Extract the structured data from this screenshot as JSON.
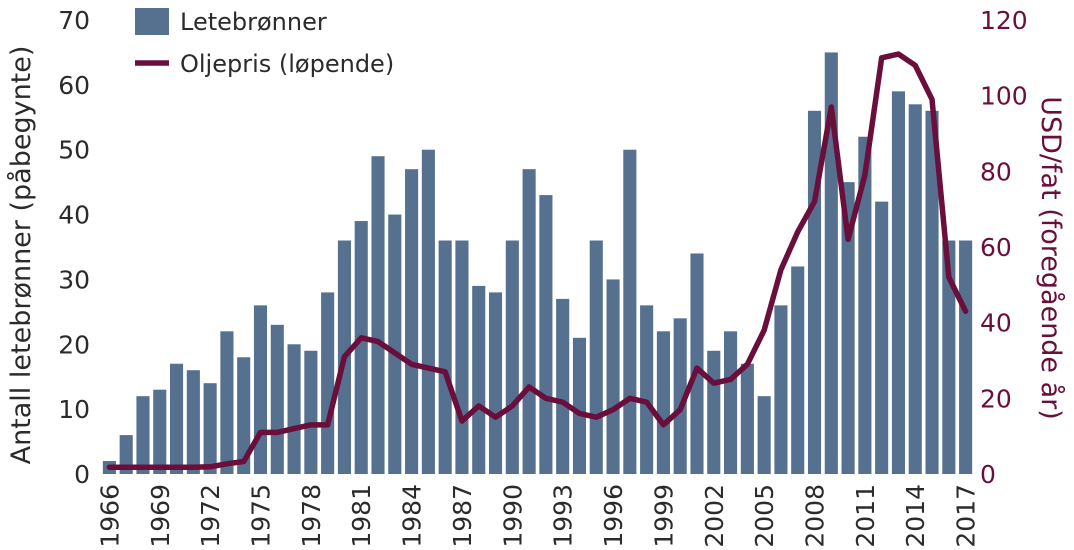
{
  "chart_data": {
    "type": "bar",
    "years": [
      1966,
      1967,
      1968,
      1969,
      1970,
      1971,
      1972,
      1973,
      1974,
      1975,
      1976,
      1977,
      1978,
      1979,
      1980,
      1981,
      1982,
      1983,
      1984,
      1985,
      1986,
      1987,
      1988,
      1989,
      1990,
      1991,
      1992,
      1993,
      1994,
      1995,
      1996,
      1997,
      1998,
      1999,
      2000,
      2001,
      2002,
      2003,
      2004,
      2005,
      2006,
      2007,
      2008,
      2009,
      2010,
      2011,
      2012,
      2013,
      2014,
      2015,
      2016,
      2017
    ],
    "series": [
      {
        "name": "Letebrønner",
        "type": "bar",
        "axis": "left",
        "values": [
          2,
          6,
          12,
          13,
          17,
          16,
          14,
          22,
          18,
          26,
          23,
          20,
          19,
          28,
          36,
          39,
          49,
          40,
          47,
          50,
          36,
          36,
          29,
          28,
          36,
          47,
          43,
          27,
          21,
          36,
          30,
          50,
          26,
          22,
          24,
          34,
          19,
          22,
          17,
          12,
          26,
          32,
          56,
          65,
          45,
          52,
          42,
          59,
          57,
          56,
          36,
          36
        ]
      },
      {
        "name": "Oljepris (løpende)",
        "type": "line",
        "axis": "right",
        "values": [
          1.8,
          1.8,
          1.8,
          1.8,
          1.8,
          1.8,
          1.9,
          2.7,
          3.3,
          11,
          11,
          12,
          13,
          13,
          31,
          36,
          35,
          32,
          29,
          28,
          27,
          14,
          18,
          15,
          18,
          23,
          20,
          19,
          16,
          15,
          17,
          20,
          19,
          13,
          17,
          28,
          24,
          25,
          29,
          38,
          54,
          64,
          72,
          97,
          62,
          79,
          110,
          111,
          108,
          99,
          52,
          43
        ]
      }
    ],
    "x_tick_labels": [
      "1966",
      "1969",
      "1972",
      "1975",
      "1978",
      "1981",
      "1984",
      "1987",
      "1990",
      "1993",
      "1996",
      "1999",
      "2002",
      "2005",
      "2008",
      "2011",
      "2014",
      "2017"
    ],
    "y_left": {
      "label": "Antall letebrønner (påbegynte)",
      "ticks": [
        "0",
        "10",
        "20",
        "30",
        "40",
        "50",
        "60",
        "70"
      ],
      "lim": [
        0,
        70
      ]
    },
    "y_right": {
      "label": "USD/fat (foregående år)",
      "ticks": [
        "0",
        "20",
        "40",
        "60",
        "80",
        "100",
        "120"
      ],
      "lim": [
        0,
        120
      ]
    },
    "legend": {
      "placement": "top-left",
      "entries": [
        "Letebrønner",
        "Oljepris (løpende)"
      ]
    },
    "grid": false,
    "colors": {
      "bar": "#56708f",
      "line": "#6a0f3c",
      "text": "#2b2b2b"
    }
  }
}
